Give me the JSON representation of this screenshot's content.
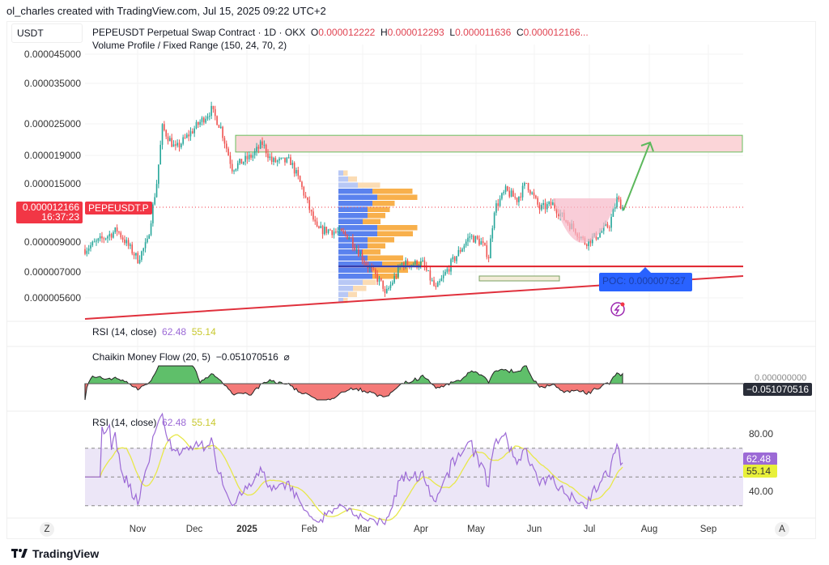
{
  "header": {
    "credit": "ol_charles created with TradingView.com, Jul 15, 2025 09:22 UTC+2",
    "currency": "USDT",
    "symbol": "PEPEUSDT Perpetual Swap Contract · 1D · OKX",
    "o_label": "O",
    "o": "0.000012222",
    "h_label": "H",
    "h": "0.000012293",
    "l_label": "L",
    "l": "0.000011636",
    "c_label": "C",
    "c": "0.000012166...",
    "indicator": "Volume Profile / Fixed Range (150, 24, 70, 2)"
  },
  "price_axis": {
    "scale": "log",
    "ticks": [
      "0.000045000",
      "0.000035000",
      "0.000025000",
      "0.000019000",
      "0.000015000",
      "0.000009000",
      "0.000007000",
      "0.000005600"
    ],
    "current_price": "0.000012166",
    "countdown": "16:37:23",
    "symbol_tag": "PEPEUSDT.P"
  },
  "x_axis": {
    "ticks": [
      "Nov",
      "Dec",
      "2025",
      "Feb",
      "Mar",
      "Apr",
      "May",
      "Jun",
      "Jul",
      "Aug",
      "Sep"
    ],
    "left_button": "Z",
    "right_button": "A"
  },
  "annotations": {
    "poc_label": "POC: 0.000007327"
  },
  "rsi_top": {
    "label": "RSI (14, close)",
    "rsi": "62.48",
    "ma": "55.14"
  },
  "cmf": {
    "label": "Chaikin Money Flow (20, 5)",
    "value": "−0.051070516",
    "zero": "0.000000000",
    "hide_icon": "⌀"
  },
  "rsi": {
    "label": "RSI (14, close)",
    "rsi": "62.48",
    "ma": "55.14",
    "ticks": [
      "80.00",
      "40.00"
    ]
  },
  "colors": {
    "up": "#26a69a",
    "down": "#ef5350",
    "rsi": "#9c6ad6",
    "rsi_ma": "#e8e84a",
    "poc": "#2962ff",
    "accent_red": "#f23645"
  },
  "footer": {
    "brand": "TradingView"
  },
  "chart_data": {
    "type": "candlestick",
    "y_scale": "log",
    "ylim": [
      5e-06,
      5e-05
    ],
    "x_range": [
      "2024-10-03",
      "2025-09-25"
    ],
    "close_path": [
      [
        "2024-10-03",
        8.5
      ],
      [
        "2024-10-20",
        10
      ],
      [
        "2024-10-31",
        7.8
      ],
      [
        "2024-11-05",
        9
      ],
      [
        "2024-11-10",
        15
      ],
      [
        "2024-11-13",
        24
      ],
      [
        "2024-11-20",
        20
      ],
      [
        "2024-12-09",
        28
      ],
      [
        "2024-12-14",
        24
      ],
      [
        "2024-12-20",
        17
      ],
      [
        "2024-12-31",
        19
      ],
      [
        "2025-01-05",
        21
      ],
      [
        "2025-01-10",
        18
      ],
      [
        "2025-01-20",
        18
      ],
      [
        "2025-01-25",
        15
      ],
      [
        "2025-02-03",
        10
      ],
      [
        "2025-02-10",
        10
      ],
      [
        "2025-02-20",
        9.5
      ],
      [
        "2025-03-01",
        7.5
      ],
      [
        "2025-03-10",
        6.2
      ],
      [
        "2025-03-11",
        5.7
      ],
      [
        "2025-03-20",
        7.5
      ],
      [
        "2025-03-31",
        7.5
      ],
      [
        "2025-04-07",
        6.0
      ],
      [
        "2025-04-15",
        7.5
      ],
      [
        "2025-04-25",
        9.5
      ],
      [
        "2025-05-01",
        9
      ],
      [
        "2025-05-05",
        8
      ],
      [
        "2025-05-08",
        12
      ],
      [
        "2025-05-14",
        14
      ],
      [
        "2025-05-20",
        13
      ],
      [
        "2025-05-25",
        15
      ],
      [
        "2025-06-01",
        12
      ],
      [
        "2025-06-08",
        12.5
      ],
      [
        "2025-06-14",
        11
      ],
      [
        "2025-06-20",
        10
      ],
      [
        "2025-06-25",
        9
      ],
      [
        "2025-07-01",
        9.5
      ],
      [
        "2025-07-08",
        10.5
      ],
      [
        "2025-07-12",
        13
      ],
      [
        "2025-07-15",
        12.166
      ]
    ],
    "price_unit": "1e-6 USDT",
    "resistance_zone": [
      19.5,
      22.5
    ],
    "support_line": 7.327,
    "volume_profile": {
      "up": [
        1,
        2,
        4,
        7,
        8,
        7,
        6,
        6,
        5,
        8,
        8,
        6,
        6,
        5,
        6,
        9,
        7,
        7,
        5,
        3,
        2,
        1
      ],
      "down": [
        1,
        2,
        5,
        9,
        9,
        5,
        5,
        4,
        4,
        9,
        8,
        6,
        4,
        4,
        8,
        9,
        8,
        6,
        3,
        3,
        2,
        1
      ]
    }
  }
}
